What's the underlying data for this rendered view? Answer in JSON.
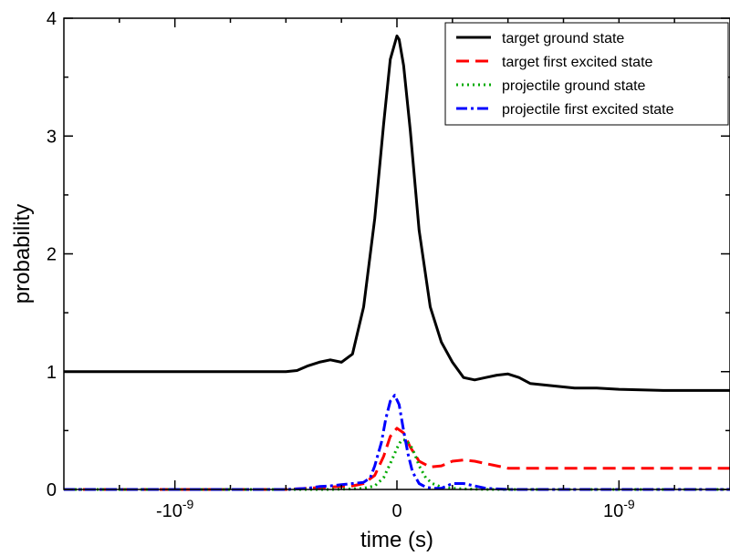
{
  "chart_data": {
    "type": "line",
    "xlabel": "time (s)",
    "ylabel": "probability",
    "xlim": [
      -1.5e-09,
      1.5e-09
    ],
    "ylim": [
      0,
      4
    ],
    "x_ticks": [
      {
        "value": -1e-09,
        "base": "-10",
        "exp": "-9"
      },
      {
        "value": 0,
        "base": "0",
        "exp": ""
      },
      {
        "value": 1e-09,
        "base": "10",
        "exp": "-9"
      }
    ],
    "y_ticks": [
      {
        "value": 0,
        "label": "0"
      },
      {
        "value": 1,
        "label": "1"
      },
      {
        "value": 2,
        "label": "2"
      },
      {
        "value": 3,
        "label": "3"
      },
      {
        "value": 4,
        "label": "4"
      }
    ],
    "grid": false,
    "legend_position": "top-right",
    "series": [
      {
        "name": "target ground state",
        "color": "#000000",
        "style": "solid",
        "x": [
          -1.5e-09,
          -1e-09,
          -5e-10,
          -4.5e-10,
          -4e-10,
          -3.5e-10,
          -3e-10,
          -2.5e-10,
          -2e-10,
          -1.5e-10,
          -1e-10,
          -6e-11,
          -3e-11,
          0,
          1e-11,
          3e-11,
          6e-11,
          1e-10,
          1.5e-10,
          2e-10,
          2.5e-10,
          3e-10,
          3.5e-10,
          4e-10,
          4.5e-10,
          5e-10,
          5.5e-10,
          6e-10,
          7e-10,
          8e-10,
          9e-10,
          1e-09,
          1.2e-09,
          1.5e-09
        ],
        "y": [
          1.0,
          1.0,
          1.0,
          1.01,
          1.05,
          1.08,
          1.1,
          1.08,
          1.15,
          1.55,
          2.3,
          3.1,
          3.65,
          3.85,
          3.82,
          3.6,
          3.05,
          2.2,
          1.55,
          1.25,
          1.08,
          0.95,
          0.93,
          0.95,
          0.97,
          0.98,
          0.95,
          0.9,
          0.88,
          0.86,
          0.86,
          0.85,
          0.84,
          0.84
        ]
      },
      {
        "name": "target first excited state",
        "color": "#ff0000",
        "style": "dash",
        "x": [
          -1.5e-09,
          -5e-10,
          -4e-10,
          -3e-10,
          -2e-10,
          -1.5e-10,
          -1e-10,
          -6e-11,
          -3e-11,
          0,
          3e-11,
          6e-11,
          1e-10,
          1.5e-10,
          2e-10,
          2.5e-10,
          3e-10,
          3.5e-10,
          4e-10,
          4.5e-10,
          5e-10,
          6e-10,
          1.5e-09
        ],
        "y": [
          0.0,
          0.0,
          0.01,
          0.02,
          0.03,
          0.05,
          0.12,
          0.28,
          0.45,
          0.52,
          0.48,
          0.36,
          0.24,
          0.19,
          0.2,
          0.24,
          0.25,
          0.24,
          0.22,
          0.2,
          0.18,
          0.18,
          0.18
        ]
      },
      {
        "name": "projectile ground state",
        "color": "#00aa00",
        "style": "dot",
        "x": [
          -1.5e-09,
          -3e-10,
          -2e-10,
          -1.5e-10,
          -1e-10,
          -6e-11,
          -3e-11,
          0,
          2e-11,
          4e-11,
          6e-11,
          8e-11,
          1e-10,
          1.3e-10,
          1.6e-10,
          2e-10,
          2.5e-10,
          3e-10,
          4e-10,
          1.5e-09
        ],
        "y": [
          0.0,
          0.0,
          0.005,
          0.01,
          0.03,
          0.1,
          0.22,
          0.35,
          0.42,
          0.42,
          0.38,
          0.3,
          0.2,
          0.1,
          0.05,
          0.02,
          0.01,
          0.005,
          0.0,
          0.0
        ]
      },
      {
        "name": "projectile first excited state",
        "color": "#0000ff",
        "style": "dashdot",
        "x": [
          -1.5e-09,
          -5e-10,
          -4e-10,
          -3.5e-10,
          -3e-10,
          -2.5e-10,
          -2e-10,
          -1.5e-10,
          -1.2e-10,
          -1e-10,
          -7e-11,
          -5e-11,
          -3e-11,
          -1e-11,
          1e-11,
          3e-11,
          5e-11,
          7e-11,
          1e-10,
          1.3e-10,
          1.6e-10,
          2e-10,
          2.5e-10,
          3e-10,
          3.5e-10,
          4e-10,
          4.5e-10,
          5e-10,
          1.5e-09
        ],
        "y": [
          0.0,
          0.0,
          0.01,
          0.025,
          0.03,
          0.04,
          0.05,
          0.06,
          0.1,
          0.2,
          0.4,
          0.6,
          0.75,
          0.8,
          0.72,
          0.5,
          0.3,
          0.15,
          0.05,
          0.02,
          0.01,
          0.01,
          0.05,
          0.05,
          0.03,
          0.01,
          0.005,
          0.0,
          0.0
        ]
      }
    ]
  }
}
